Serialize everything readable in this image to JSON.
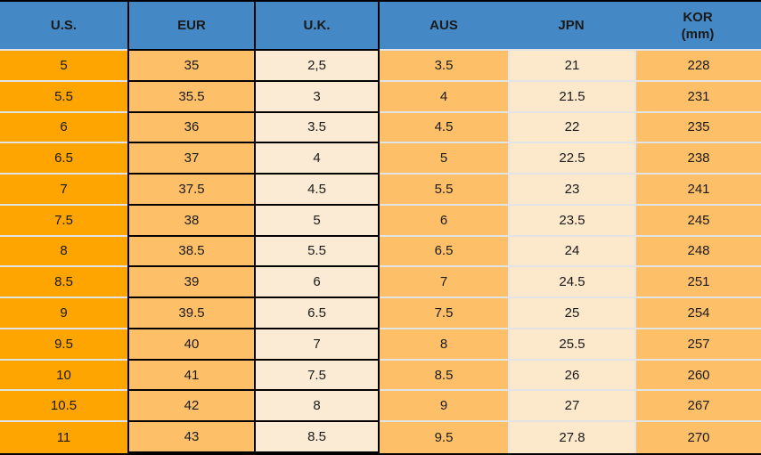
{
  "chart_data": {
    "type": "table",
    "columns": [
      {
        "label": "U.S."
      },
      {
        "label": "EUR"
      },
      {
        "label": "U.K."
      },
      {
        "label": "AUS"
      },
      {
        "label": "JPN"
      },
      {
        "label": "KOR",
        "sublabel": "(mm)"
      }
    ],
    "rows": [
      [
        "5",
        "35",
        "2,5",
        "3.5",
        "21",
        "228"
      ],
      [
        "5.5",
        "35.5",
        "3",
        "4",
        "21.5",
        "231"
      ],
      [
        "6",
        "36",
        "3.5",
        "4.5",
        "22",
        "235"
      ],
      [
        "6.5",
        "37",
        "4",
        "5",
        "22.5",
        "238"
      ],
      [
        "7",
        "37.5",
        "4.5",
        "5.5",
        "23",
        "241"
      ],
      [
        "7.5",
        "38",
        "5",
        "6",
        "23.5",
        "245"
      ],
      [
        "8",
        "38.5",
        "5.5",
        "6.5",
        "24",
        "248"
      ],
      [
        "8.5",
        "39",
        "6",
        "7",
        "24.5",
        "251"
      ],
      [
        "9",
        "39.5",
        "6.5",
        "7.5",
        "25",
        "254"
      ],
      [
        "9.5",
        "40",
        "7",
        "8",
        "25.5",
        "257"
      ],
      [
        "10",
        "41",
        "7.5",
        "8.5",
        "26",
        "260"
      ],
      [
        "10.5",
        "42",
        "8",
        "9",
        "27",
        "267"
      ],
      [
        "11",
        "43",
        "8.5",
        "9.5",
        "27.8",
        "270"
      ]
    ]
  },
  "colors": {
    "header_bg": "#4489C6",
    "col_us": "#FFA502",
    "col_accent": "#FDC068",
    "col_cream_uk": "#FCEBD4",
    "col_cream_jpn": "#FCE8CA",
    "border_dark": "#000000",
    "border_light": "#E3E4E6",
    "text": "#1A1A1A"
  }
}
